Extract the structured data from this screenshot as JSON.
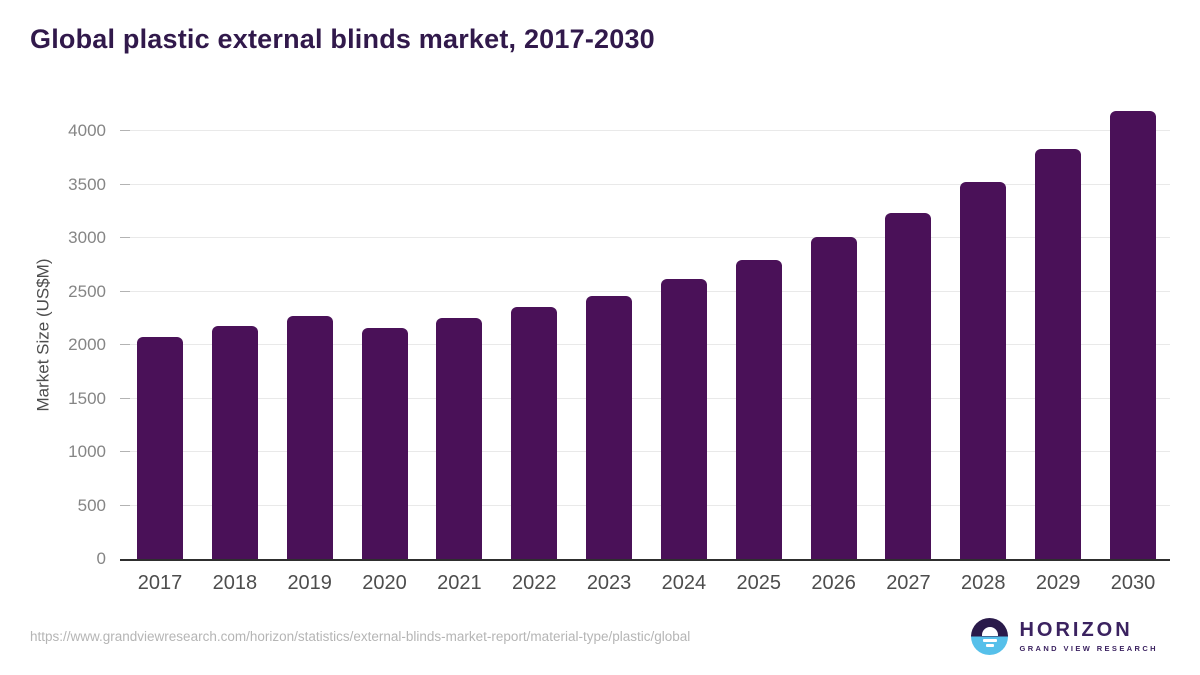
{
  "title": "Global plastic external blinds market, 2017-2030",
  "source_url": "https://www.grandviewresearch.com/horizon/statistics/external-blinds-market-report/material-type/plastic/global",
  "logo": {
    "name": "HORIZON",
    "subtitle": "GRAND VIEW RESEARCH"
  },
  "colors": {
    "bar": "#4a1158",
    "title": "#31194b",
    "axis_line": "#2e2e2e",
    "gridline": "#e9e9e9",
    "tick_label": "#858585",
    "x_label": "#4d4d4d",
    "logo_purple": "#2a1a4a",
    "logo_blue": "#56c0ea"
  },
  "chart_data": {
    "type": "bar",
    "title": "Global plastic external blinds market, 2017-2030",
    "categories": [
      "2017",
      "2018",
      "2019",
      "2020",
      "2021",
      "2022",
      "2023",
      "2024",
      "2025",
      "2026",
      "2027",
      "2028",
      "2029",
      "2030"
    ],
    "values": [
      2080,
      2175,
      2275,
      2165,
      2250,
      2355,
      2460,
      2620,
      2795,
      3015,
      3240,
      3530,
      3840,
      4190
    ],
    "xlabel": "",
    "ylabel": "Market Size (US$M)",
    "ylim": [
      0,
      4200
    ],
    "yticks": [
      0,
      500,
      1000,
      1500,
      2000,
      2500,
      3000,
      3500,
      4000
    ],
    "grid": true,
    "legend": false
  }
}
